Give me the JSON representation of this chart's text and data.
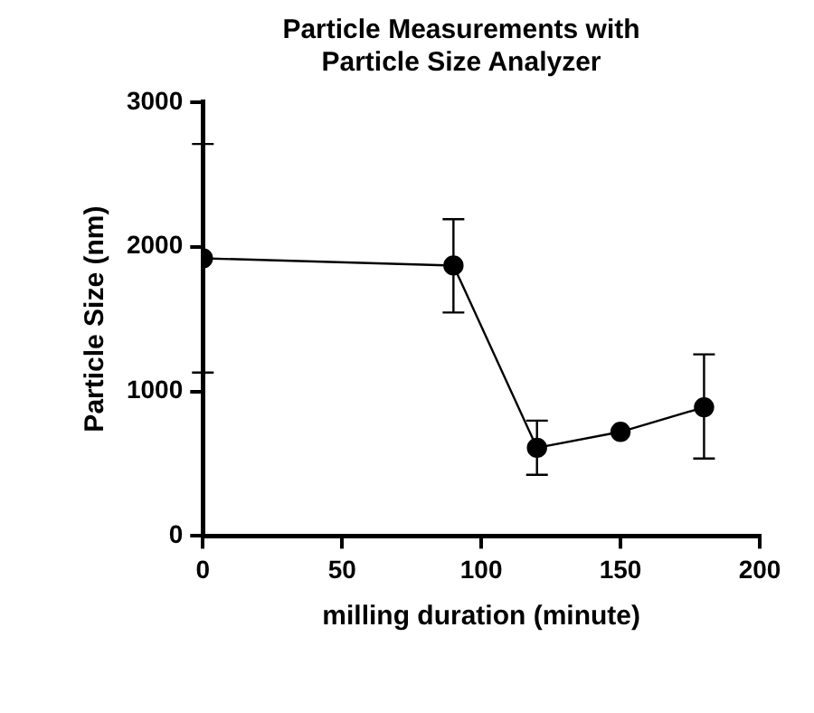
{
  "chart_data": {
    "type": "line",
    "title": "Particle Measurements with Particle Size Analyzer",
    "xlabel": "milling duration (minute)",
    "ylabel": "Particle Size (nm)",
    "x": [
      0,
      90,
      120,
      150,
      180
    ],
    "series": [
      {
        "color": "#000000",
        "values": [
          1920,
          1870,
          610,
          720,
          890
        ],
        "errors": [
          [
            1130,
            2710
          ],
          [
            1545,
            2190
          ],
          [
            423,
            798
          ],
          null,
          [
            536,
            1256
          ]
        ]
      }
    ],
    "xlim": [
      0,
      200
    ],
    "xticks": [
      0,
      50,
      100,
      150,
      200
    ],
    "ylim": [
      0,
      3000
    ],
    "yticks": [
      0,
      1000,
      2000,
      3000
    ],
    "legend": false,
    "marker": "circle",
    "line_style": "solid"
  }
}
